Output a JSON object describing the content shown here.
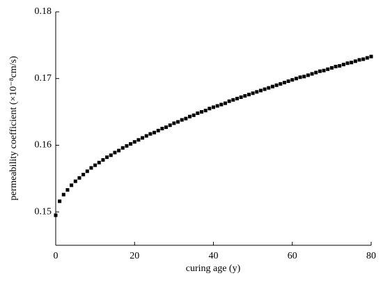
{
  "chart_data": {
    "type": "scatter",
    "xlabel": "curing age (y)",
    "ylabel": "permeability coefficient (×10⁻⁸cm/s)",
    "x": [
      0,
      1,
      2,
      3,
      4,
      5,
      6,
      7,
      8,
      9,
      10,
      11,
      12,
      13,
      14,
      15,
      16,
      17,
      18,
      19,
      20,
      21,
      22,
      23,
      24,
      25,
      26,
      27,
      28,
      29,
      30,
      31,
      32,
      33,
      34,
      35,
      36,
      37,
      38,
      39,
      40,
      41,
      42,
      43,
      44,
      45,
      46,
      47,
      48,
      49,
      50,
      51,
      52,
      53,
      54,
      55,
      56,
      57,
      58,
      59,
      60,
      61,
      62,
      63,
      64,
      65,
      66,
      67,
      68,
      69,
      70,
      71,
      72,
      73,
      74,
      75,
      76,
      77,
      78,
      79,
      80
    ],
    "values": [
      0.1495,
      0.1516,
      0.1526,
      0.1533,
      0.154,
      0.1546,
      0.1551,
      0.1556,
      0.1561,
      0.1566,
      0.157,
      0.1574,
      0.1578,
      0.1582,
      0.1585,
      0.1589,
      0.1592,
      0.1596,
      0.1599,
      0.1602,
      0.1605,
      0.1608,
      0.1611,
      0.1614,
      0.1617,
      0.1619,
      0.1622,
      0.1625,
      0.1627,
      0.163,
      0.1633,
      0.1635,
      0.1638,
      0.164,
      0.1643,
      0.1645,
      0.1648,
      0.165,
      0.1652,
      0.1655,
      0.1657,
      0.1659,
      0.1661,
      0.1663,
      0.1666,
      0.1668,
      0.167,
      0.1672,
      0.1674,
      0.1676,
      0.1678,
      0.168,
      0.1682,
      0.1684,
      0.1686,
      0.1688,
      0.169,
      0.1692,
      0.1694,
      0.1696,
      0.1698,
      0.17,
      0.1702,
      0.1703,
      0.1705,
      0.1707,
      0.1709,
      0.1711,
      0.1712,
      0.1714,
      0.1716,
      0.1718,
      0.1719,
      0.1721,
      0.1723,
      0.1724,
      0.1726,
      0.1728,
      0.1729,
      0.1731,
      0.1733
    ],
    "color": "#000000",
    "xlim": [
      0,
      80
    ],
    "xticks": [
      0,
      20,
      40,
      60,
      80
    ],
    "ylim": [
      0.145,
      0.18
    ],
    "yticks": [
      0.15,
      0.16,
      0.17,
      0.18
    ]
  }
}
